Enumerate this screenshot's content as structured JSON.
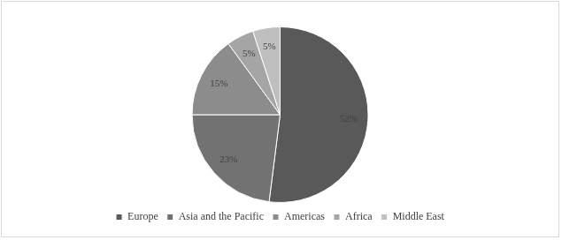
{
  "chart_data": {
    "type": "pie",
    "categories": [
      "Europe",
      "Asia and the Pacific",
      "Americas",
      "Africa",
      "Middle East"
    ],
    "values": [
      52,
      23,
      15,
      5,
      5
    ],
    "value_labels": [
      "52%",
      "23%",
      "15%",
      "5%",
      "5%"
    ],
    "colors": [
      "#595959",
      "#727272",
      "#8c8c8c",
      "#a5a5a5",
      "#bfbfbf"
    ],
    "data_labels": true,
    "legend": "bottom"
  }
}
